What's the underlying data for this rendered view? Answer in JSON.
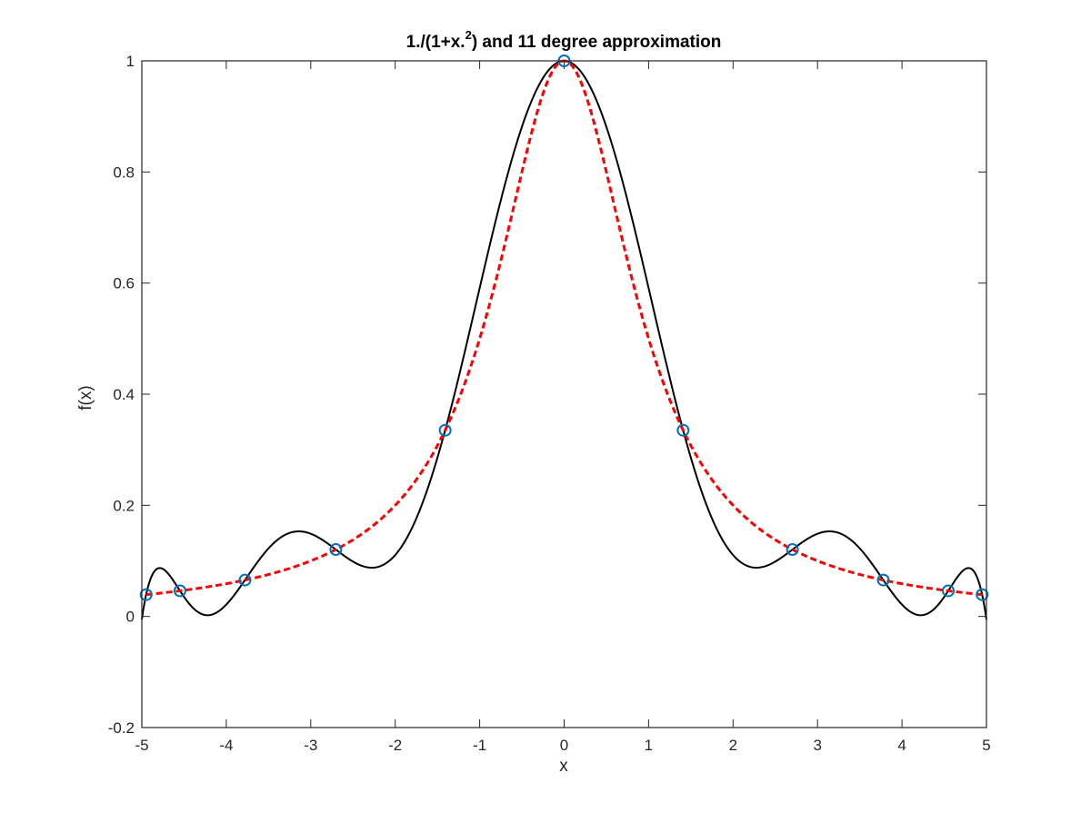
{
  "chart_data": {
    "type": "line",
    "title": "1./(1+x.",
    "title_superscript": "2",
    "title_suffix": ") and 11 degree approximation",
    "xlabel": "x",
    "ylabel": "f(x)",
    "xlim": [
      -5,
      5
    ],
    "ylim": [
      -0.2,
      1
    ],
    "xticks": [
      "-5",
      "-4",
      "-3",
      "-2",
      "-1",
      "0",
      "1",
      "2",
      "3",
      "4",
      "5"
    ],
    "yticks": [
      "-0.2",
      "0",
      "0.2",
      "0.4",
      "0.6",
      "0.8",
      "1"
    ],
    "grid": false,
    "box": true,
    "function": "1/(1+x^2)",
    "polynomial_degree": 11,
    "series": [
      {
        "kind": "polynomial",
        "style": "solid",
        "color": "#000000"
      },
      {
        "kind": "function",
        "style": "dashed",
        "color": "#ff0000"
      },
      {
        "kind": "nodes",
        "style": "markers",
        "marker": "circle",
        "color": "#0072bd",
        "x": [
          -4.9491,
          -4.5482,
          -3.7787,
          -2.7032,
          -1.4087,
          0.0,
          1.4087,
          2.7032,
          3.7787,
          4.5482,
          4.9491
        ],
        "y": [
          0.0392,
          0.0461,
          0.0655,
          0.1204,
          0.3351,
          1.0,
          0.3351,
          0.1204,
          0.0655,
          0.0461,
          0.0392
        ]
      }
    ]
  }
}
